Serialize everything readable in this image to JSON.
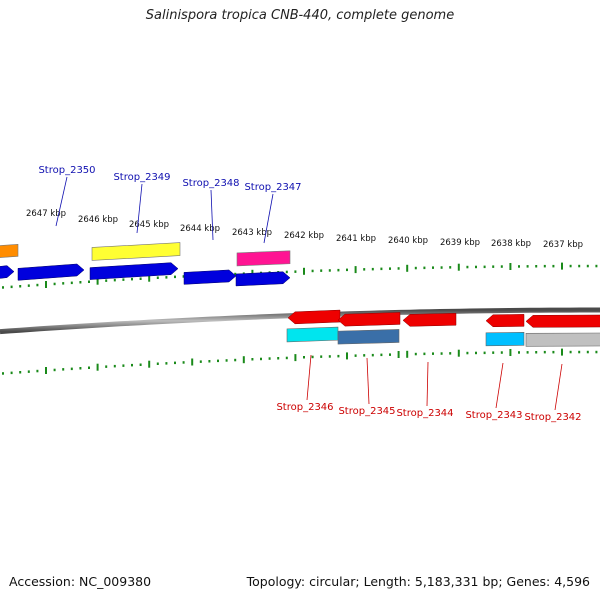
{
  "title": "Salinispora tropica CNB-440, complete genome",
  "footer": {
    "accession": "Accession: NC_009380",
    "summary": "Topology: circular; Length: 5,183,331 bp; Genes: 4,596"
  },
  "colors": {
    "forward_label": "#1010b0",
    "reverse_label": "#cc0000",
    "tick": "#1a8a1a",
    "backbone": "#7a7a7a"
  },
  "kbp_labels": [
    "2647 kbp",
    "2646 kbp",
    "2645 kbp",
    "2644 kbp",
    "2643 kbp",
    "2642 kbp",
    "2641 kbp",
    "2640 kbp",
    "2639 kbp",
    "2638 kbp",
    "2637 kbp"
  ],
  "forward_labels": [
    "Strop_2350",
    "Strop_2349",
    "Strop_2348",
    "Strop_2347"
  ],
  "reverse_labels": [
    "Strop_2346",
    "Strop_2345",
    "Strop_2344",
    "Strop_2343",
    "Strop_2342"
  ],
  "forward_genes": [
    {
      "color": "#0000dd",
      "style": "arrow"
    },
    {
      "color": "#0000dd",
      "style": "arrow"
    },
    {
      "color": "#0000dd",
      "style": "arrow"
    },
    {
      "color": "#0000dd",
      "style": "arrow"
    },
    {
      "color": "#0000dd",
      "style": "arrow"
    }
  ],
  "forward_features": [
    {
      "color": "#ff8c00"
    },
    {
      "color": "#ffff33"
    },
    {
      "color": "#ff1493"
    }
  ],
  "reverse_genes": [
    {
      "color": "#ee0000"
    },
    {
      "color": "#ee0000"
    },
    {
      "color": "#ee0000"
    },
    {
      "color": "#ee0000"
    },
    {
      "color": "#ee0000"
    }
  ],
  "reverse_features": [
    {
      "color": "#00e5ee"
    },
    {
      "color": "#3a6fa8"
    },
    {
      "color": "#00bfff"
    },
    {
      "color": "#c0c0c0"
    }
  ]
}
